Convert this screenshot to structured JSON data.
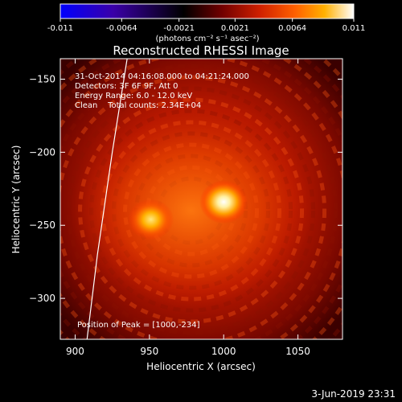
{
  "chart_data": {
    "type": "heatmap",
    "title": "Reconstructed RHESSI Image",
    "xlabel": "Heliocentric X (arcsec)",
    "ylabel": "Heliocentric Y (arcsec)",
    "xlim": [
      890,
      1080
    ],
    "ylim": [
      -328,
      -136
    ],
    "x_ticks": [
      "900",
      "950",
      "1000",
      "1050"
    ],
    "y_ticks": [
      "-150",
      "-200",
      "-250",
      "-300"
    ],
    "x_tick_values": [
      900,
      950,
      1000,
      1050
    ],
    "y_tick_values": [
      -150,
      -200,
      -250,
      -300
    ],
    "colorbar": {
      "min": -0.011,
      "max": 0.011,
      "ticks": [
        "-0.011",
        "-0.0064",
        "-0.0021",
        "0.0021",
        "0.0064",
        "0.011"
      ],
      "tick_values": [
        -0.011,
        -0.0064,
        -0.0021,
        0.0021,
        0.0064,
        0.011
      ],
      "label": "(photons cm⁻² s⁻¹ asec⁻²)",
      "colormap": [
        "#0000ff",
        "#3a00a8",
        "#000000",
        "#700000",
        "#d02000",
        "#ff6000",
        "#ffb000",
        "#ffffff"
      ]
    },
    "sources": [
      {
        "x": 1000,
        "y": -234,
        "relative_intensity": 1.0
      },
      {
        "x": 951,
        "y": -246,
        "relative_intensity": 0.8
      }
    ],
    "annotations": [
      "31-Oct-2014 04:16:08.000 to 04:21:24.000",
      "Detectors: 3F 6F 9F, Att 0",
      "Energy Range: 6.0 - 12.0 keV",
      "Clean    Total counts: 2.34E+04"
    ],
    "peak_label": "Position of Peak = [1000,-234]",
    "limb_curve": [
      [
        935,
        -136
      ],
      [
        925,
        -200
      ],
      [
        915,
        -270
      ],
      [
        908,
        -328
      ]
    ]
  },
  "footer": {
    "date": "3-Jun-2019 23:31"
  }
}
